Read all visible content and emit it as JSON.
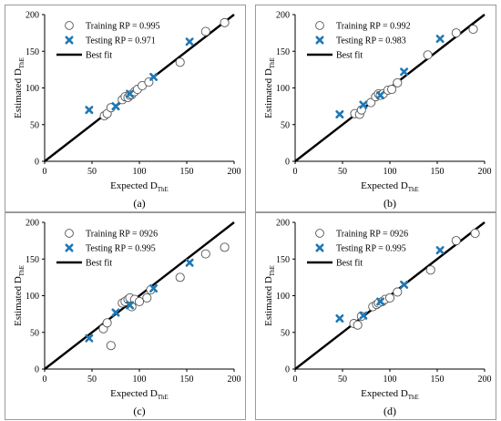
{
  "colors": {
    "testing": "#1f77b4",
    "axis": "#000000",
    "training_edge": "#555555"
  },
  "chart_data": [
    {
      "type": "scatter",
      "caption": "(a)",
      "xlabel": "Expected D",
      "xlabel_sub": "ThE",
      "ylabel": "Estimated D",
      "ylabel_sub": "ThE",
      "xlim": [
        0,
        200
      ],
      "ylim": [
        0,
        200
      ],
      "xticks": [
        "0",
        "50",
        "100",
        "150",
        "200"
      ],
      "yticks": [
        "0",
        "50",
        "100",
        "150",
        "200"
      ],
      "legend_position": "top-left",
      "series": [
        {
          "name": "Training RP = 0.995",
          "marker": "circle",
          "points": [
            [
              63,
              62
            ],
            [
              66,
              65
            ],
            [
              70,
              73
            ],
            [
              82,
              84
            ],
            [
              85,
              88
            ],
            [
              88,
              87
            ],
            [
              90,
              90
            ],
            [
              92,
              91
            ],
            [
              95,
              95
            ],
            [
              98,
              98
            ],
            [
              103,
              103
            ],
            [
              110,
              108
            ],
            [
              143,
              135
            ],
            [
              170,
              177
            ],
            [
              190,
              189
            ]
          ]
        },
        {
          "name": "Testing RP = 0.971",
          "marker": "x",
          "points": [
            [
              47,
              70
            ],
            [
              75,
              75
            ],
            [
              90,
              92
            ],
            [
              115,
              115
            ],
            [
              153,
              163
            ]
          ]
        },
        {
          "name": "Best fit",
          "marker": "line",
          "points": [
            [
              0,
              0
            ],
            [
              200,
              200
            ]
          ]
        }
      ]
    },
    {
      "type": "scatter",
      "caption": "(b)",
      "xlabel": "Expected D",
      "xlabel_sub": "ThE",
      "ylabel": "Estimated D",
      "ylabel_sub": "ThE",
      "xlim": [
        0,
        200
      ],
      "ylim": [
        0,
        200
      ],
      "xticks": [
        "0",
        "50",
        "100",
        "150",
        "200"
      ],
      "yticks": [
        "0",
        "50",
        "100",
        "150",
        "200"
      ],
      "legend_position": "top-left",
      "series": [
        {
          "name": "Training RP = 0.992",
          "marker": "circle",
          "points": [
            [
              63,
              65
            ],
            [
              68,
              64
            ],
            [
              70,
              70
            ],
            [
              80,
              80
            ],
            [
              85,
              88
            ],
            [
              88,
              92
            ],
            [
              90,
              90
            ],
            [
              93,
              92
            ],
            [
              98,
              97
            ],
            [
              102,
              98
            ],
            [
              108,
              107
            ],
            [
              140,
              145
            ],
            [
              170,
              175
            ],
            [
              188,
              180
            ]
          ]
        },
        {
          "name": "Testing RP = 0.983",
          "marker": "x",
          "points": [
            [
              47,
              64
            ],
            [
              72,
              77
            ],
            [
              90,
              90
            ],
            [
              115,
              122
            ],
            [
              153,
              167
            ]
          ]
        },
        {
          "name": "Best fit",
          "marker": "line",
          "points": [
            [
              0,
              0
            ],
            [
              200,
              200
            ]
          ]
        }
      ]
    },
    {
      "type": "scatter",
      "caption": "(c)",
      "xlabel": "Expected D",
      "xlabel_sub": "ThE",
      "ylabel": "Estimated D",
      "ylabel_sub": "ThE",
      "xlim": [
        0,
        200
      ],
      "ylim": [
        0,
        200
      ],
      "xticks": [
        "0",
        "50",
        "100",
        "150",
        "200"
      ],
      "yticks": [
        "0",
        "50",
        "100",
        "150",
        "200"
      ],
      "legend_position": "top-left",
      "series": [
        {
          "name": "Training RP = 0926",
          "marker": "circle",
          "points": [
            [
              62,
              55
            ],
            [
              66,
              63
            ],
            [
              70,
              32
            ],
            [
              82,
              90
            ],
            [
              85,
              92
            ],
            [
              88,
              95
            ],
            [
              90,
              97
            ],
            [
              92,
              85
            ],
            [
              95,
              95
            ],
            [
              100,
              92
            ],
            [
              108,
              97
            ],
            [
              112,
              108
            ],
            [
              143,
              125
            ],
            [
              170,
              157
            ],
            [
              190,
              166
            ]
          ]
        },
        {
          "name": "Testing RP = 0.995",
          "marker": "x",
          "points": [
            [
              47,
              42
            ],
            [
              75,
              77
            ],
            [
              90,
              87
            ],
            [
              115,
              110
            ],
            [
              153,
              145
            ]
          ]
        },
        {
          "name": "Best fit",
          "marker": "line",
          "points": [
            [
              0,
              0
            ],
            [
              200,
              200
            ]
          ]
        }
      ]
    },
    {
      "type": "scatter",
      "caption": "(d)",
      "xlabel": "Expected D",
      "xlabel_sub": "ThE",
      "ylabel": "Estimated D",
      "ylabel_sub": "ThE",
      "xlim": [
        0,
        200
      ],
      "ylim": [
        0,
        200
      ],
      "xticks": [
        "0",
        "50",
        "100",
        "150",
        "200"
      ],
      "yticks": [
        "0",
        "50",
        "100",
        "150",
        "200"
      ],
      "legend_position": "top-left",
      "series": [
        {
          "name": "Training RP = 0926",
          "marker": "circle",
          "points": [
            [
              62,
              62
            ],
            [
              66,
              60
            ],
            [
              70,
              72
            ],
            [
              82,
              85
            ],
            [
              86,
              88
            ],
            [
              88,
              90
            ],
            [
              92,
              92
            ],
            [
              95,
              95
            ],
            [
              100,
              97
            ],
            [
              108,
              105
            ],
            [
              143,
              135
            ],
            [
              170,
              175
            ],
            [
              190,
              185
            ]
          ]
        },
        {
          "name": "Testing RP = 0.995",
          "marker": "x",
          "points": [
            [
              47,
              69
            ],
            [
              72,
              73
            ],
            [
              90,
              92
            ],
            [
              115,
              115
            ],
            [
              153,
              162
            ]
          ]
        },
        {
          "name": "Best fit",
          "marker": "line",
          "points": [
            [
              0,
              0
            ],
            [
              200,
              200
            ]
          ]
        }
      ]
    }
  ]
}
